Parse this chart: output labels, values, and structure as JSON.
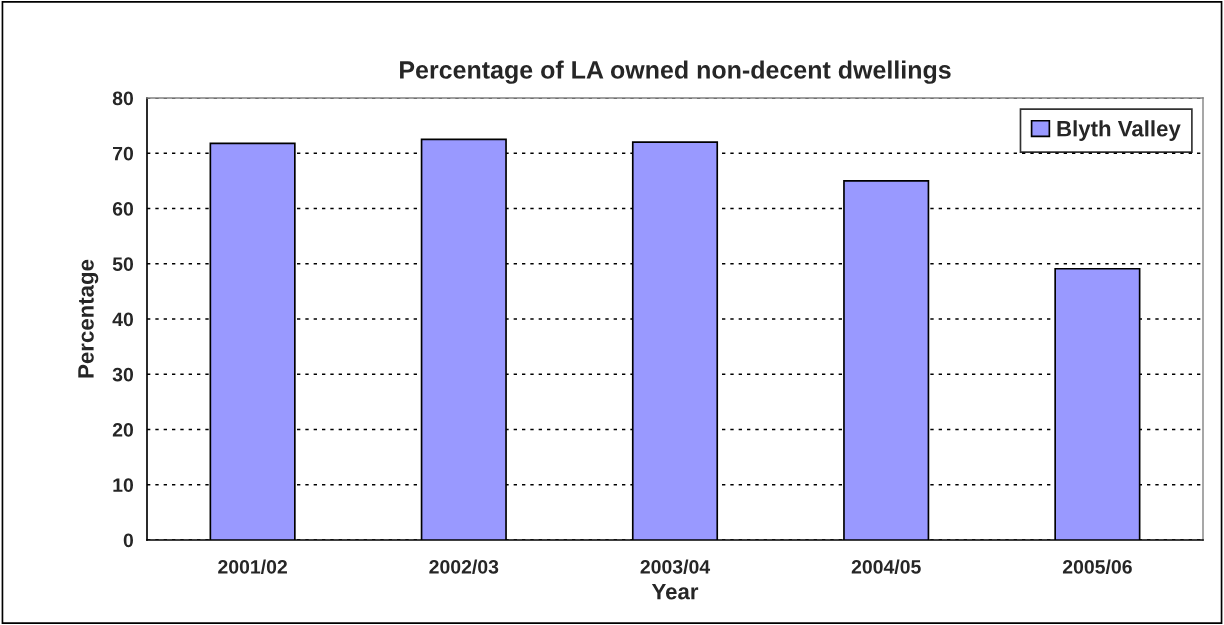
{
  "chart_data": {
    "type": "bar",
    "title": "Percentage of LA owned non-decent dwellings",
    "xlabel": "Year",
    "ylabel": "Percentage",
    "categories": [
      "2001/02",
      "2002/03",
      "2003/04",
      "2004/05",
      "2005/06"
    ],
    "series": [
      {
        "name": "Blyth Valley",
        "color": "#9999ff",
        "values": [
          71.8,
          72.5,
          72.0,
          65.0,
          49.1
        ]
      }
    ],
    "ylim": [
      0,
      80
    ],
    "yticks": [
      0,
      10,
      20,
      30,
      40,
      50,
      60,
      70,
      80
    ],
    "grid": "y",
    "legend": "top right"
  }
}
